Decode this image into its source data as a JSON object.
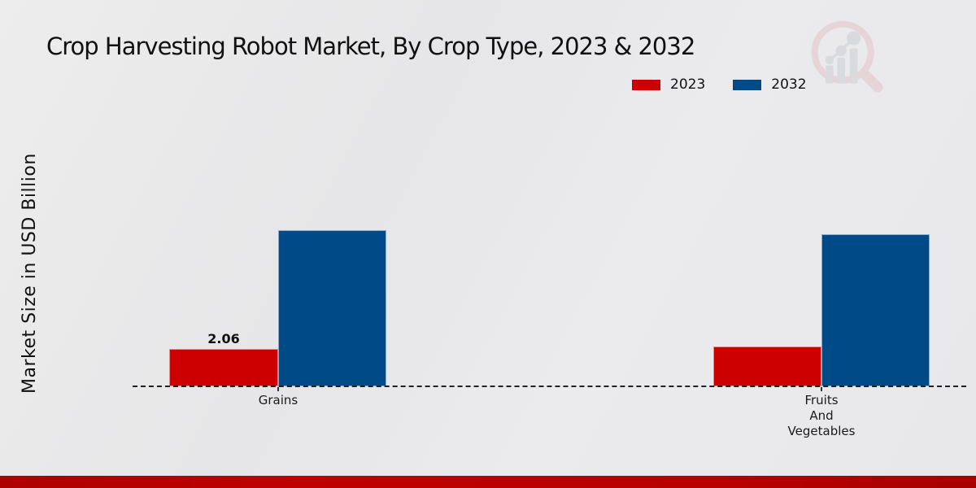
{
  "page": {
    "title": "Crop Harvesting Robot Market, By Crop Type, 2023 & 2032",
    "ylabel": "Market Size in USD Billion"
  },
  "legend": {
    "position": "top-right",
    "items": [
      {
        "label": "2023",
        "color": "#cc0000"
      },
      {
        "label": "2032",
        "color": "#004a87"
      }
    ]
  },
  "watermark": {
    "icon": "magnifier-bar-chart-logo",
    "ring_color": "#e0bcc1",
    "bars_color": "#c6c8ce"
  },
  "footer": {
    "color": "#b80000"
  },
  "chart_data": {
    "type": "bar",
    "title": "Crop Harvesting Robot Market, By Crop Type, 2023 & 2032",
    "xlabel": "",
    "ylabel": "Market Size in USD Billion",
    "categories": [
      "Grains",
      "Fruits And Vegetables"
    ],
    "categories_display": [
      [
        "Grains"
      ],
      [
        "Fruits",
        "And",
        "Vegetables"
      ]
    ],
    "series": [
      {
        "name": "2023",
        "color": "#cc0000",
        "values": [
          2.06,
          2.2
        ]
      },
      {
        "name": "2032",
        "color": "#004a87",
        "values": [
          8.6,
          8.4
        ]
      }
    ],
    "bar_labels": [
      {
        "series": "2023",
        "category": "Grains",
        "value": "2.06"
      }
    ],
    "ylim": [
      0,
      10.5
    ],
    "y_axis_ticks_visible": false,
    "grid": false,
    "baseline_style": "dashed",
    "legend_position": "top-right"
  }
}
